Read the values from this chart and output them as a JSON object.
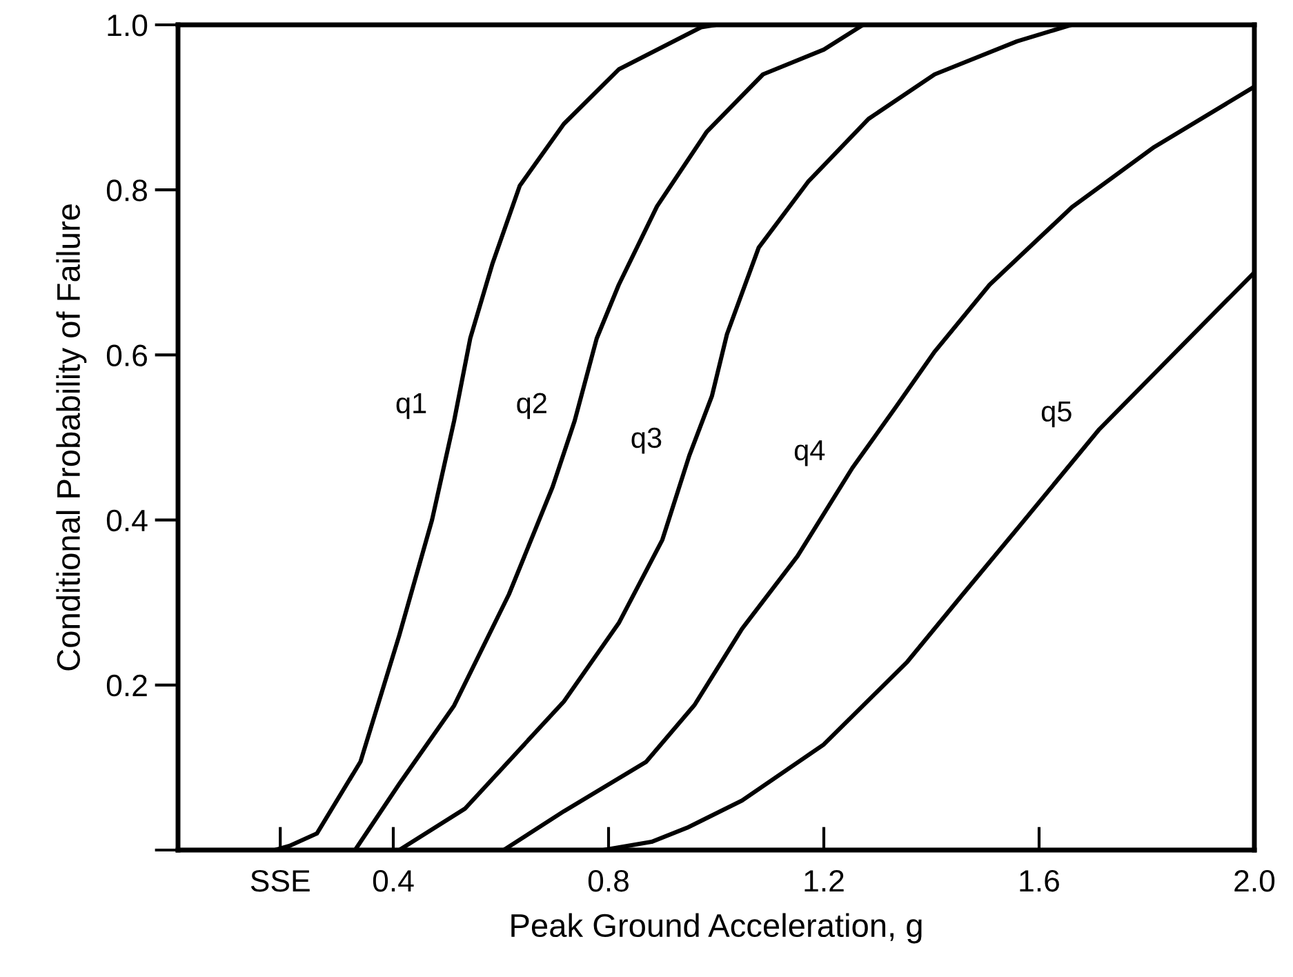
{
  "chart_data": {
    "type": "line",
    "xlabel": "Peak Ground Acceleration, g",
    "ylabel": "Conditional Probability of Failure",
    "xlim": [
      0,
      2.0
    ],
    "ylim": [
      0,
      1.0
    ],
    "xticks": [
      {
        "value": 0.19,
        "label": "SSE"
      },
      0.4,
      0.8,
      1.2,
      1.6,
      {
        "value": 2,
        "label": "2.0"
      }
    ],
    "yticks": [
      {
        "value": 0,
        "label": null
      },
      0.2,
      0.4,
      0.6,
      0.8,
      {
        "value": 1,
        "label": "1.0"
      }
    ],
    "grid": false,
    "legend": false,
    "marker": "none",
    "line_style": "solid",
    "series": [
      {
        "name": "q1",
        "color": "#000000",
        "x": [
          0.18,
          0.207,
          0.258,
          0.339,
          0.411,
          0.472,
          0.513,
          0.543,
          0.584,
          0.635,
          0.717,
          0.819,
          0.972,
          1.0
        ],
        "values": [
          0,
          0.005,
          0.02,
          0.107,
          0.26,
          0.4,
          0.52,
          0.62,
          0.71,
          0.805,
          0.88,
          0.946,
          0.997,
          1.0
        ]
      },
      {
        "name": "q2",
        "color": "#000000",
        "x": [
          0.329,
          0.411,
          0.513,
          0.615,
          0.696,
          0.737,
          0.778,
          0.819,
          0.89,
          0.982,
          1.087,
          1.2,
          1.273
        ],
        "values": [
          0,
          0.08,
          0.175,
          0.31,
          0.44,
          0.52,
          0.62,
          0.685,
          0.78,
          0.87,
          0.94,
          0.97,
          1.0
        ]
      },
      {
        "name": "q3",
        "color": "#000000",
        "x": [
          0.411,
          0.533,
          0.717,
          0.819,
          0.9,
          0.95,
          0.992,
          1.02,
          1.079,
          1.171,
          1.283,
          1.406,
          1.559,
          1.66
        ],
        "values": [
          0,
          0.05,
          0.18,
          0.275,
          0.376,
          0.478,
          0.55,
          0.625,
          0.73,
          0.81,
          0.886,
          0.94,
          0.98,
          1.0
        ]
      },
      {
        "name": "q4",
        "color": "#000000",
        "x": [
          0.605,
          0.717,
          0.87,
          0.96,
          1.048,
          1.151,
          1.253,
          1.334,
          1.406,
          1.508,
          1.661,
          1.814,
          2.0
        ],
        "values": [
          0,
          0.047,
          0.107,
          0.176,
          0.268,
          0.356,
          0.463,
          0.537,
          0.604,
          0.685,
          0.779,
          0.852,
          0.925
        ]
      },
      {
        "name": "q5",
        "color": "#000000",
        "x": [
          0.79,
          0.88,
          0.946,
          1.048,
          1.2,
          1.355,
          1.457,
          1.559,
          1.712,
          1.865,
          2.0
        ],
        "values": [
          0,
          0.01,
          0.027,
          0.06,
          0.128,
          0.228,
          0.309,
          0.389,
          0.51,
          0.611,
          0.7
        ]
      }
    ]
  }
}
